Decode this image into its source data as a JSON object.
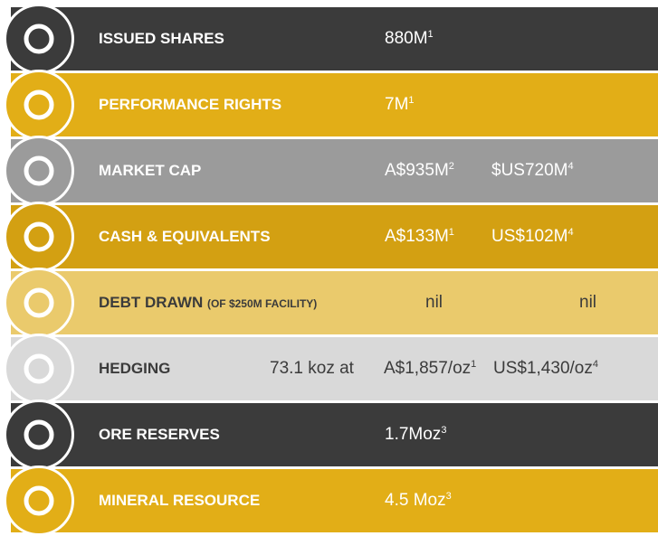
{
  "rows": [
    {
      "label": "ISSUED SHARES",
      "values": [
        {
          "text": "880M",
          "note": "1"
        }
      ]
    },
    {
      "label": "PERFORMANCE RIGHTS",
      "values": [
        {
          "text": "7M",
          "note": "1"
        }
      ]
    },
    {
      "label": "MARKET CAP",
      "values": [
        {
          "text": "A$935M",
          "note": "2"
        },
        {
          "text": "$US720M",
          "note": "4"
        }
      ]
    },
    {
      "label": "CASH & EQUIVALENTS",
      "values": [
        {
          "text": "A$133M",
          "note": "1"
        },
        {
          "text": "US$102M",
          "note": "4"
        }
      ]
    },
    {
      "label": "DEBT DRAWN",
      "sublabel": "(OF $250M FACILITY)",
      "values": [
        {
          "text": "nil"
        },
        {
          "text": "nil"
        }
      ]
    },
    {
      "label": "HEDGING",
      "prefix": "73.1 koz at",
      "values": [
        {
          "text": "A$1,857/oz",
          "note": "1"
        },
        {
          "text": "US$1,430/oz",
          "note": "4"
        }
      ]
    },
    {
      "label": "ORE RESERVES",
      "values": [
        {
          "text": "1.7Moz",
          "note": "3"
        }
      ]
    },
    {
      "label": "MINERAL RESOURCE",
      "values": [
        {
          "text": "4.5 Moz",
          "note": "3"
        }
      ]
    }
  ]
}
